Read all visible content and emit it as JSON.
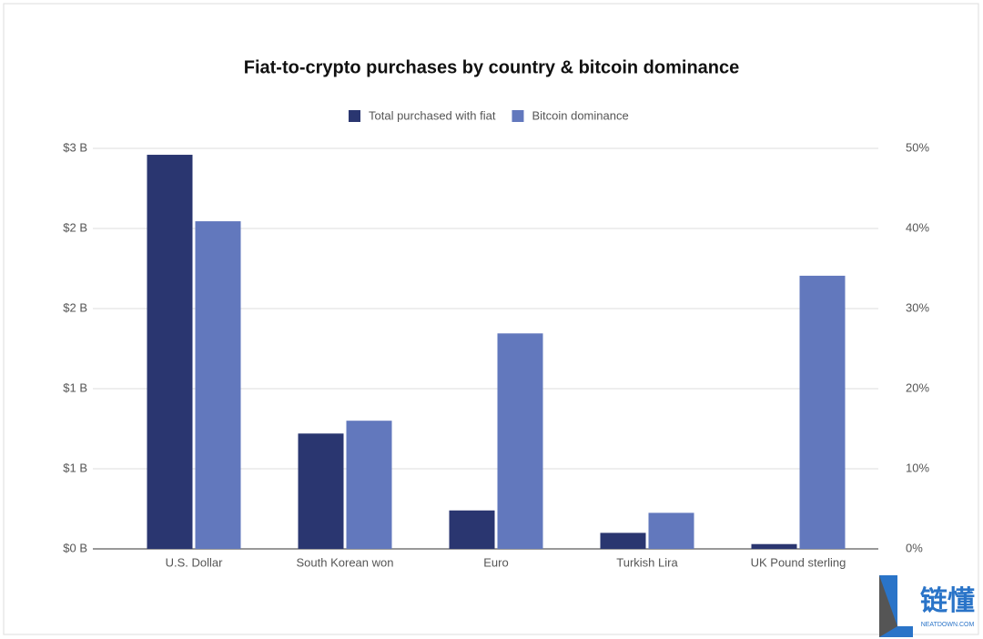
{
  "chart_data": {
    "type": "bar",
    "title": "Fiat-to-crypto purchases by country & bitcoin dominance",
    "categories": [
      "U.S. Dollar",
      "South Korean won",
      "Euro",
      "Turkish Lira",
      "UK Pound sterling"
    ],
    "series": [
      {
        "name": "Total purchased with fiat",
        "color": "#2a3670",
        "values": [
          2.46,
          0.72,
          0.24,
          0.1,
          0.03
        ]
      },
      {
        "name": "Bitcoin dominance",
        "color": "#6278bd",
        "axis": "y2",
        "values": [
          40.9,
          16,
          26.9,
          4.5,
          34.1
        ]
      }
    ],
    "ylim": [
      0,
      2.5
    ],
    "yticks": [
      {
        "value": 0,
        "label": "$0 B"
      },
      {
        "value": 0.5,
        "label": "$1 B"
      },
      {
        "value": 1,
        "label": "$1 B"
      },
      {
        "value": 1.5,
        "label": "$2 B"
      },
      {
        "value": 2,
        "label": "$2 B"
      },
      {
        "value": 2.5,
        "label": "$3 B"
      }
    ],
    "y2lim": [
      0,
      50
    ],
    "y2ticks": [
      {
        "value": 0,
        "label": "0%"
      },
      {
        "value": 10,
        "label": "10%"
      },
      {
        "value": 20,
        "label": "20%"
      },
      {
        "value": 30,
        "label": "30%"
      },
      {
        "value": 40,
        "label": "40%"
      },
      {
        "value": 50,
        "label": "50%"
      }
    ],
    "grid": true,
    "legend": "top"
  },
  "watermark": {
    "text": "链懂",
    "site": "NEATDOWN.COM"
  }
}
